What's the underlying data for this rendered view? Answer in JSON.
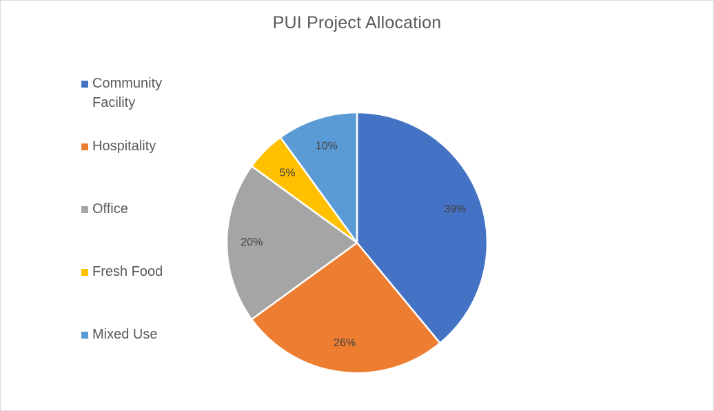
{
  "chart_data": {
    "type": "pie",
    "title": "PUI Project Allocation",
    "categories": [
      "Community Facility",
      "Hospitality",
      "Office",
      "Fresh Food",
      "Mixed Use"
    ],
    "values": [
      39,
      26,
      20,
      5,
      10
    ],
    "data_labels": [
      "39%",
      "26%",
      "20%",
      "5%",
      "10%"
    ],
    "colors": [
      "#4472c4",
      "#ed7d31",
      "#a5a5a5",
      "#ffc000",
      "#5b9bd5"
    ],
    "legend_position": "left",
    "start_angle": "12 o'clock, clockwise"
  }
}
